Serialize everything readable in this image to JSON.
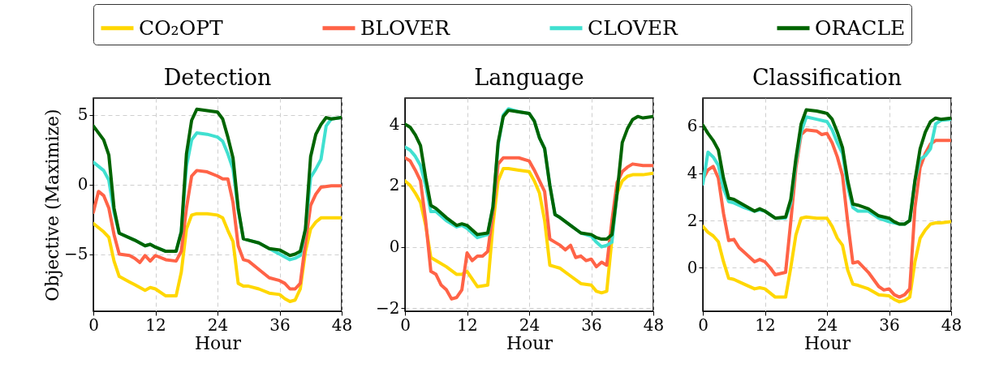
{
  "chart_data": [
    {
      "type": "line",
      "title": "Detection",
      "xlabel": "Hour",
      "ylabel": "Objective (Maximize)",
      "xlim": [
        0,
        48
      ],
      "xticks": [
        0,
        12,
        24,
        36,
        48
      ],
      "ylim": [
        -9.1,
        6.2
      ],
      "yticks": [
        -5,
        0,
        5
      ],
      "grid": true,
      "legend": "top",
      "marker": "none",
      "line_style": "solid",
      "series": [
        {
          "name": "CO₂OPT",
          "color": "#ffd700",
          "x": [
            0,
            2,
            3,
            4,
            5,
            7,
            8,
            10,
            11,
            12,
            14,
            16,
            17,
            18,
            19,
            20,
            22,
            24,
            25,
            26,
            27,
            28,
            29,
            30,
            32,
            34,
            36,
            37,
            38,
            39,
            40,
            41,
            42,
            43,
            44,
            46,
            48
          ],
          "values": [
            -2.8,
            -3.4,
            -3.8,
            -5.5,
            -6.6,
            -7.0,
            -7.2,
            -7.6,
            -7.4,
            -7.5,
            -8.0,
            -8.0,
            -6.3,
            -3.2,
            -2.2,
            -2.1,
            -2.1,
            -2.2,
            -2.4,
            -3.3,
            -4.1,
            -7.1,
            -7.3,
            -7.3,
            -7.5,
            -7.8,
            -7.9,
            -8.2,
            -8.4,
            -8.3,
            -7.5,
            -4.8,
            -3.2,
            -2.7,
            -2.4,
            -2.4,
            -2.4
          ]
        },
        {
          "name": "BLOVER",
          "color": "#ff6347",
          "x": [
            0,
            1,
            2,
            3,
            4,
            5,
            7,
            8,
            9,
            10,
            11,
            12,
            14,
            16,
            17,
            18,
            19,
            20,
            22,
            24,
            25,
            26,
            27,
            28,
            29,
            30,
            32,
            34,
            36,
            37,
            38,
            39,
            40,
            41,
            42,
            43,
            44,
            46,
            48
          ],
          "values": [
            -2.0,
            -0.5,
            -0.8,
            -1.7,
            -3.6,
            -5.0,
            -5.1,
            -5.3,
            -5.6,
            -5.1,
            -5.5,
            -5.1,
            -5.4,
            -5.5,
            -4.8,
            -1.7,
            0.6,
            1.0,
            0.9,
            0.6,
            0.4,
            0.4,
            -1.3,
            -4.4,
            -5.4,
            -5.5,
            -6.1,
            -6.7,
            -6.9,
            -7.1,
            -7.5,
            -7.5,
            -7.1,
            -4.2,
            -1.5,
            -0.7,
            -0.2,
            -0.1,
            -0.1
          ]
        },
        {
          "name": "CLOVER",
          "color": "#40e0d0",
          "x": [
            0,
            2,
            3,
            4,
            5,
            8,
            10,
            11,
            12,
            14,
            16,
            17,
            18,
            19,
            20,
            22,
            24,
            25,
            26,
            27,
            28,
            29,
            30,
            32,
            34,
            36,
            37,
            38,
            39,
            40,
            41,
            42,
            43,
            44,
            45,
            46,
            48
          ],
          "values": [
            1.6,
            1.0,
            0.3,
            -2.0,
            -3.5,
            -4.0,
            -4.4,
            -4.3,
            -4.5,
            -4.8,
            -4.8,
            -3.4,
            1.3,
            3.2,
            3.7,
            3.6,
            3.4,
            3.1,
            2.2,
            1.1,
            -1.8,
            -3.9,
            -4.0,
            -4.2,
            -4.6,
            -5.0,
            -5.2,
            -5.4,
            -5.3,
            -5.1,
            -3.2,
            0.5,
            1.1,
            1.8,
            4.2,
            4.7,
            4.8
          ]
        },
        {
          "name": "ORACLE",
          "color": "#006400",
          "x": [
            0,
            2,
            3,
            4,
            5,
            8,
            10,
            11,
            12,
            14,
            16,
            17,
            18,
            19,
            20,
            22,
            24,
            25,
            26,
            27,
            28,
            29,
            30,
            32,
            34,
            36,
            37,
            38,
            39,
            40,
            41,
            42,
            43,
            44,
            45,
            46,
            48
          ],
          "values": [
            4.2,
            3.2,
            2.1,
            -1.7,
            -3.5,
            -4.0,
            -4.4,
            -4.3,
            -4.5,
            -4.8,
            -4.8,
            -3.4,
            2.2,
            4.6,
            5.4,
            5.3,
            5.2,
            4.7,
            3.4,
            1.9,
            -1.7,
            -3.9,
            -4.0,
            -4.2,
            -4.6,
            -4.7,
            -4.9,
            -5.1,
            -5.0,
            -4.8,
            -3.2,
            2.0,
            3.6,
            4.3,
            4.8,
            4.7,
            4.8
          ]
        }
      ]
    },
    {
      "type": "line",
      "title": "Language",
      "xlabel": "Hour",
      "xlim": [
        0,
        48
      ],
      "xticks": [
        0,
        12,
        24,
        36,
        48
      ],
      "ylim": [
        -2.1,
        4.85
      ],
      "yticks": [
        -2,
        0,
        2,
        4
      ],
      "grid": true,
      "marker": "none",
      "line_style": "solid",
      "series": [
        {
          "name": "CO₂OPT",
          "color": "#ffd700",
          "x": [
            0,
            1,
            2,
            3,
            4,
            5,
            6,
            8,
            10,
            11,
            12,
            14,
            16,
            17,
            18,
            19,
            20,
            22,
            24,
            25,
            26,
            27,
            28,
            29,
            30,
            32,
            34,
            36,
            37,
            38,
            39,
            40,
            41,
            42,
            43,
            44,
            45,
            46,
            48
          ],
          "values": [
            2.15,
            2.0,
            1.75,
            1.45,
            0.7,
            -0.35,
            -0.45,
            -0.65,
            -0.9,
            -0.9,
            -0.8,
            -1.3,
            -1.25,
            0.7,
            2.15,
            2.55,
            2.55,
            2.5,
            2.45,
            2.15,
            1.75,
            0.85,
            -0.6,
            -0.65,
            -0.7,
            -0.95,
            -1.2,
            -1.25,
            -1.45,
            -1.5,
            -1.45,
            0.25,
            1.75,
            2.15,
            2.3,
            2.35,
            2.35,
            2.35,
            2.4
          ]
        },
        {
          "name": "BLOVER",
          "color": "#ff6347",
          "x": [
            0,
            1,
            2,
            3,
            4,
            5,
            6,
            7,
            8,
            9,
            10,
            11,
            12,
            13,
            14,
            15,
            16,
            17,
            18,
            19,
            20,
            22,
            24,
            25,
            26,
            27,
            28,
            29,
            30,
            31,
            32,
            33,
            34,
            35,
            36,
            37,
            38,
            39,
            40,
            41,
            42,
            43,
            44,
            46,
            48
          ],
          "values": [
            2.9,
            2.8,
            2.5,
            2.15,
            0.85,
            -0.8,
            -0.9,
            -1.25,
            -1.4,
            -1.7,
            -1.65,
            -1.4,
            -0.2,
            -0.45,
            -0.3,
            -0.3,
            -0.15,
            1.1,
            2.7,
            2.9,
            2.9,
            2.9,
            2.8,
            2.5,
            2.15,
            1.8,
            0.25,
            0.15,
            0.05,
            -0.1,
            0.05,
            -0.35,
            -0.3,
            -0.45,
            -0.4,
            -0.65,
            -0.5,
            -0.6,
            0.85,
            2.1,
            2.45,
            2.6,
            2.7,
            2.65,
            2.65
          ]
        },
        {
          "name": "CLOVER",
          "color": "#40e0d0",
          "x": [
            0,
            1,
            2,
            3,
            4,
            5,
            6,
            8,
            10,
            11,
            12,
            14,
            16,
            17,
            18,
            19,
            20,
            22,
            24,
            25,
            26,
            27,
            28,
            29,
            30,
            32,
            34,
            36,
            37,
            38,
            39,
            40,
            41
          ],
          "values": [
            3.25,
            3.15,
            2.95,
            2.65,
            2.0,
            1.15,
            1.15,
            0.85,
            0.65,
            0.7,
            0.6,
            0.3,
            0.4,
            1.3,
            3.3,
            4.3,
            4.5,
            4.4,
            4.35,
            4.1,
            3.55,
            3.2,
            2.0,
            1.05,
            0.95,
            0.7,
            0.45,
            0.35,
            0.15,
            0.0,
            0.05,
            0.15,
            1.75
          ]
        },
        {
          "name": "ORACLE",
          "color": "#006400",
          "x": [
            0,
            1,
            2,
            3,
            4,
            5,
            6,
            8,
            10,
            11,
            12,
            14,
            16,
            17,
            18,
            19,
            20,
            22,
            24,
            25,
            26,
            27,
            28,
            29,
            30,
            32,
            34,
            36,
            37,
            38,
            39,
            40,
            41,
            42,
            43,
            44,
            45,
            46,
            48
          ],
          "values": [
            4.0,
            3.9,
            3.65,
            3.3,
            2.25,
            1.35,
            1.25,
            0.95,
            0.7,
            0.75,
            0.7,
            0.4,
            0.45,
            1.3,
            3.4,
            4.25,
            4.45,
            4.4,
            4.35,
            4.1,
            3.55,
            3.2,
            2.0,
            1.05,
            0.95,
            0.7,
            0.45,
            0.4,
            0.3,
            0.25,
            0.25,
            0.4,
            1.75,
            3.4,
            3.85,
            4.15,
            4.25,
            4.2,
            4.25
          ]
        }
      ]
    },
    {
      "type": "line",
      "title": "Classification",
      "xlabel": "Hour",
      "xlim": [
        0,
        48
      ],
      "xticks": [
        0,
        12,
        24,
        36,
        48
      ],
      "ylim": [
        -1.85,
        7.2
      ],
      "yticks": [
        0,
        2,
        4,
        6
      ],
      "grid": true,
      "marker": "none",
      "line_style": "solid",
      "series": [
        {
          "name": "CO₂OPT",
          "color": "#ffd700",
          "x": [
            0,
            1,
            2,
            3,
            4,
            5,
            6,
            8,
            10,
            11,
            12,
            14,
            16,
            17,
            18,
            19,
            20,
            22,
            24,
            25,
            26,
            27,
            28,
            29,
            30,
            32,
            34,
            36,
            37,
            38,
            39,
            40,
            41,
            42,
            43,
            44,
            45,
            46,
            48
          ],
          "values": [
            1.75,
            1.5,
            1.35,
            1.1,
            0.25,
            -0.45,
            -0.5,
            -0.7,
            -0.9,
            -0.85,
            -0.9,
            -1.25,
            -1.25,
            0.0,
            1.4,
            2.1,
            2.15,
            2.1,
            2.1,
            1.75,
            1.25,
            0.95,
            -0.1,
            -0.7,
            -0.75,
            -0.9,
            -1.15,
            -1.2,
            -1.35,
            -1.45,
            -1.4,
            -1.25,
            0.25,
            1.25,
            1.6,
            1.85,
            1.9,
            1.9,
            1.95
          ]
        },
        {
          "name": "BLOVER",
          "color": "#ff6347",
          "x": [
            0,
            1,
            2,
            3,
            4,
            5,
            6,
            7,
            8,
            10,
            11,
            12,
            13,
            14,
            16,
            17,
            18,
            19,
            20,
            22,
            23,
            24,
            25,
            26,
            27,
            28,
            29,
            30,
            32,
            34,
            35,
            36,
            37,
            38,
            39,
            40,
            41,
            42,
            43,
            44,
            45,
            46,
            48
          ],
          "values": [
            3.75,
            4.15,
            4.3,
            3.8,
            2.3,
            1.15,
            1.2,
            0.85,
            0.65,
            0.25,
            0.35,
            0.25,
            0.0,
            -0.3,
            -0.2,
            1.95,
            4.25,
            5.65,
            5.85,
            5.8,
            5.65,
            5.7,
            5.3,
            4.7,
            3.9,
            1.95,
            0.2,
            0.25,
            -0.2,
            -0.8,
            -0.95,
            -0.9,
            -1.15,
            -1.25,
            -1.15,
            -0.9,
            2.55,
            4.25,
            4.85,
            5.25,
            5.4,
            5.4,
            5.4
          ]
        },
        {
          "name": "CLOVER",
          "color": "#40e0d0",
          "x": [
            0,
            1,
            2,
            3,
            4,
            5,
            6,
            8,
            10,
            11,
            12,
            14,
            16,
            17,
            18,
            19,
            20,
            22,
            24,
            25,
            26,
            27,
            28,
            29,
            30,
            32,
            34,
            36,
            37,
            38,
            39,
            40,
            41,
            42,
            43,
            44,
            45,
            46,
            48
          ],
          "values": [
            3.55,
            4.9,
            4.7,
            4.35,
            3.35,
            2.8,
            2.75,
            2.55,
            2.4,
            2.45,
            2.4,
            2.1,
            2.1,
            2.75,
            4.5,
            5.75,
            6.4,
            6.3,
            6.2,
            5.85,
            5.3,
            4.85,
            3.45,
            2.55,
            2.4,
            2.4,
            2.1,
            1.95,
            1.9,
            1.85,
            1.85,
            2.0,
            3.7,
            4.6,
            4.75,
            5.05,
            6.1,
            6.25,
            6.3
          ]
        },
        {
          "name": "ORACLE",
          "color": "#006400",
          "x": [
            0,
            1,
            2,
            3,
            4,
            5,
            6,
            8,
            10,
            11,
            12,
            14,
            16,
            17,
            18,
            19,
            20,
            22,
            24,
            25,
            26,
            27,
            28,
            29,
            30,
            32,
            34,
            36,
            37,
            38,
            39,
            40,
            41,
            42,
            43,
            44,
            45,
            46,
            48
          ],
          "values": [
            6.05,
            5.7,
            5.4,
            5.0,
            3.8,
            2.95,
            2.9,
            2.65,
            2.4,
            2.5,
            2.4,
            2.1,
            2.15,
            2.9,
            4.65,
            6.1,
            6.7,
            6.65,
            6.55,
            6.3,
            5.75,
            5.1,
            3.7,
            2.7,
            2.65,
            2.5,
            2.2,
            2.1,
            1.95,
            1.85,
            1.85,
            2.0,
            3.7,
            5.05,
            5.75,
            6.2,
            6.35,
            6.3,
            6.35
          ]
        }
      ]
    }
  ]
}
